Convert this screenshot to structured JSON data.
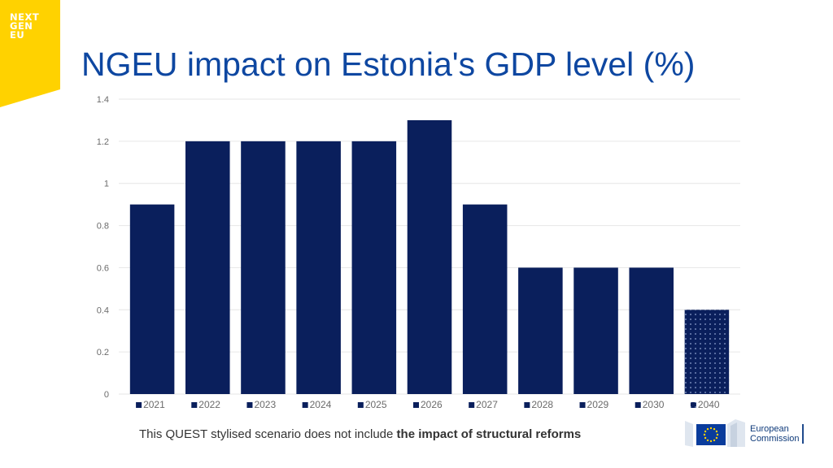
{
  "logo": {
    "lines": [
      "NEXT",
      "GEN",
      "EU"
    ]
  },
  "title": "NGEU impact on Estonia's GDP level (%)",
  "colors": {
    "bar": "#0a1f5c",
    "title": "#0e47a1",
    "badge": "#ffd200",
    "grid": "#e6e6e6"
  },
  "chart_data": {
    "type": "bar",
    "title": "NGEU impact on Estonia's GDP level (%)",
    "categories": [
      "2021",
      "2022",
      "2023",
      "2024",
      "2025",
      "2026",
      "2027",
      "2028",
      "2029",
      "2030",
      "2040"
    ],
    "values": [
      0.9,
      1.2,
      1.2,
      1.2,
      1.2,
      1.3,
      0.9,
      0.6,
      0.6,
      0.6,
      0.4
    ],
    "hatched_categories": [
      "2040"
    ],
    "ylim": [
      0,
      1.4
    ],
    "yticks": [
      "0",
      "0.2",
      "0.4",
      "0.6",
      "0.8",
      "1",
      "1.2",
      "1.4"
    ],
    "grid": true,
    "legend": "bottom"
  },
  "footnote": {
    "plain": "This QUEST stylised scenario does not include ",
    "bold": "the impact of structural reforms"
  },
  "ec_logo": {
    "line1": "European",
    "line2": "Commission"
  }
}
